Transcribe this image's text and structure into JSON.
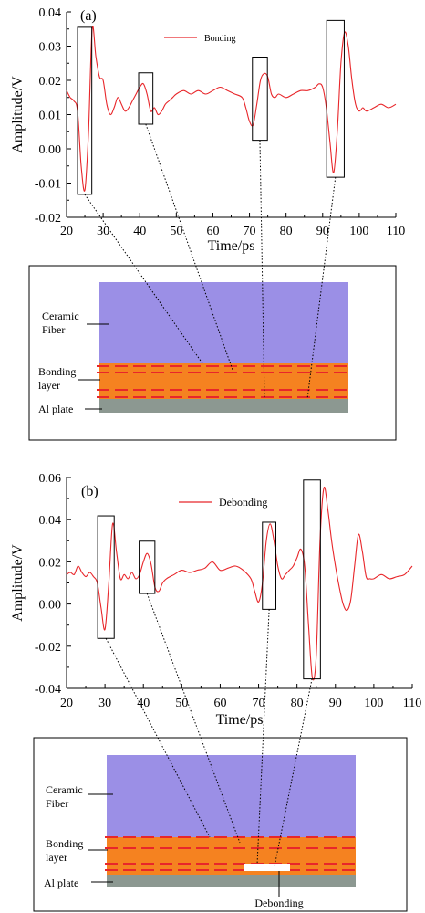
{
  "colors": {
    "signal": "#e8262a",
    "ceramic": "#9b8fe6",
    "bonding": "#f58220",
    "al": "#8c9891",
    "layer_dash": "#e8262a",
    "debond": "#ffffff"
  },
  "chart_data": [
    {
      "type": "line",
      "panel_label": "(a)",
      "xlabel": "Time/ps",
      "ylabel": "Amplitude/V",
      "xlim": [
        20,
        110
      ],
      "ylim": [
        -0.02,
        0.04
      ],
      "xticks": [
        20,
        30,
        40,
        50,
        60,
        70,
        80,
        90,
        100,
        110
      ],
      "yticks": [
        -0.02,
        -0.01,
        0.0,
        0.01,
        0.02,
        0.03,
        0.04
      ],
      "ytick_labels": [
        "-0.02",
        "-0.01",
        "0.00",
        "0.01",
        "0.02",
        "0.03",
        "0.04"
      ],
      "legend_position": "top-center",
      "grid": false,
      "series": [
        {
          "name": "Bonding",
          "x": [
            20,
            21,
            22,
            23,
            24,
            25,
            26,
            27,
            28,
            29,
            30,
            31,
            32,
            33,
            34,
            35,
            36,
            37,
            38,
            39,
            40,
            41,
            42,
            43,
            44,
            45,
            46,
            47,
            48,
            49,
            50,
            52,
            54,
            56,
            58,
            60,
            62,
            64,
            66,
            68,
            69,
            70,
            71,
            72,
            73,
            74,
            75,
            76,
            77,
            78,
            80,
            82,
            84,
            86,
            88,
            89,
            90,
            91,
            92,
            93,
            94,
            95,
            96,
            97,
            98,
            99,
            100,
            101,
            102,
            104,
            106,
            108,
            110
          ],
          "y": [
            0.017,
            0.015,
            0.014,
            0.011,
            -0.005,
            -0.012,
            0.005,
            0.035,
            0.027,
            0.021,
            0.02,
            0.013,
            0.01,
            0.012,
            0.015,
            0.013,
            0.011,
            0.012,
            0.014,
            0.016,
            0.018,
            0.019,
            0.016,
            0.011,
            0.012,
            0.01,
            0.011,
            0.013,
            0.014,
            0.015,
            0.016,
            0.017,
            0.016,
            0.017,
            0.016,
            0.017,
            0.018,
            0.017,
            0.016,
            0.015,
            0.012,
            0.008,
            0.007,
            0.013,
            0.02,
            0.022,
            0.021,
            0.016,
            0.015,
            0.016,
            0.015,
            0.016,
            0.017,
            0.017,
            0.018,
            0.019,
            0.018,
            0.012,
            0.002,
            -0.007,
            0.005,
            0.025,
            0.034,
            0.03,
            0.02,
            0.013,
            0.011,
            0.012,
            0.011,
            0.012,
            0.013,
            0.012,
            0.013
          ]
        }
      ],
      "highlight_boxes": [
        {
          "x": [
            23.0,
            26.9
          ],
          "y": [
            -0.0133,
            0.0355
          ]
        },
        {
          "x": [
            39.7,
            43.6
          ],
          "y": [
            0.0072,
            0.0222
          ]
        },
        {
          "x": [
            70.8,
            74.9
          ],
          "y": [
            0.0025,
            0.0268
          ]
        },
        {
          "x": [
            91.1,
            95.9
          ],
          "y": [
            -0.0083,
            0.0375
          ]
        }
      ],
      "schematic": {
        "labels": {
          "ceramic": "Ceramic\nFiber",
          "bonding": "Bonding\nlayer",
          "al": "Al plate"
        },
        "has_debond": false
      }
    },
    {
      "type": "line",
      "panel_label": "(b)",
      "xlabel": "Time/ps",
      "ylabel": "Amplitude/V",
      "xlim": [
        20,
        110
      ],
      "ylim": [
        -0.04,
        0.06
      ],
      "xticks": [
        20,
        30,
        40,
        50,
        60,
        70,
        80,
        90,
        100,
        110
      ],
      "yticks": [
        -0.04,
        -0.02,
        0.0,
        0.02,
        0.04,
        0.06
      ],
      "ytick_labels": [
        "-0.04",
        "-0.02",
        "0.00",
        "0.02",
        "0.04",
        "0.06"
      ],
      "legend_position": "top-center",
      "grid": false,
      "series": [
        {
          "name": "Debonding",
          "x": [
            20,
            21,
            22,
            23,
            24,
            25,
            26,
            27,
            28,
            29,
            30,
            31,
            32,
            33,
            34,
            35,
            36,
            37,
            38,
            39,
            40,
            41,
            42,
            43,
            44,
            45,
            46,
            48,
            50,
            52,
            54,
            56,
            58,
            60,
            62,
            64,
            66,
            68,
            69,
            70,
            71,
            72,
            73,
            74,
            75,
            76,
            77,
            78,
            79,
            80,
            81,
            82,
            83,
            84,
            85,
            86,
            87,
            88,
            89,
            90,
            91,
            92,
            93,
            94,
            95,
            96,
            97,
            98,
            99,
            100,
            102,
            104,
            106,
            108,
            110
          ],
          "y": [
            0.014,
            0.015,
            0.014,
            0.018,
            0.015,
            0.013,
            0.015,
            0.013,
            0.01,
            -0.002,
            -0.012,
            0.01,
            0.038,
            0.025,
            0.012,
            0.014,
            0.012,
            0.015,
            0.012,
            0.014,
            0.02,
            0.024,
            0.019,
            0.008,
            0.006,
            0.01,
            0.012,
            0.014,
            0.016,
            0.015,
            0.016,
            0.017,
            0.02,
            0.016,
            0.017,
            0.018,
            0.016,
            0.012,
            0.006,
            0.001,
            0.01,
            0.03,
            0.038,
            0.03,
            0.018,
            0.012,
            0.014,
            0.016,
            0.018,
            0.022,
            0.026,
            0.018,
            -0.01,
            -0.035,
            -0.025,
            0.03,
            0.055,
            0.045,
            0.03,
            0.018,
            0.008,
            0.0,
            -0.003,
            0.002,
            0.018,
            0.033,
            0.025,
            0.013,
            0.012,
            0.012,
            0.014,
            0.012,
            0.013,
            0.014,
            0.018
          ]
        }
      ],
      "highlight_boxes": [
        {
          "x": [
            28.1,
            32.4
          ],
          "y": [
            -0.0163,
            0.0418
          ]
        },
        {
          "x": [
            38.9,
            43.0
          ],
          "y": [
            0.005,
            0.0298
          ]
        },
        {
          "x": [
            71.0,
            74.5
          ],
          "y": [
            -0.0025,
            0.0388
          ]
        },
        {
          "x": [
            81.7,
            86.1
          ],
          "y": [
            -0.0355,
            0.0588
          ]
        }
      ],
      "schematic": {
        "labels": {
          "ceramic": "Ceramic\nFiber",
          "bonding": "Bonding\nlayer",
          "al": "Al plate",
          "debond": "Debonding"
        },
        "has_debond": true
      }
    }
  ]
}
